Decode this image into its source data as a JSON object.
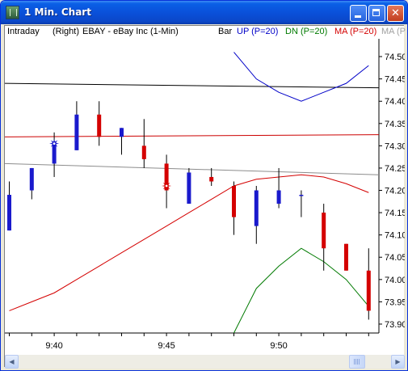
{
  "window": {
    "title": "1 Min. Chart",
    "icon": "chart-app-icon",
    "controls": {
      "minimize": "minimize-icon",
      "maximize": "maximize-icon",
      "close": "✕"
    }
  },
  "header": {
    "mode": "Intraday",
    "axis_side": "(Right)",
    "symbol": "EBAY - eBay Inc  (1-Min)",
    "bar_label": "Bar",
    "up_label": "UP (P=20)",
    "dn_label": "DN (P=20)",
    "ma_label": "MA (P=20)",
    "ma2_label": "MA (P"
  },
  "colors": {
    "up_candle": "#1a1acd",
    "down_candle": "#d40000",
    "up_band": "#0000c8",
    "dn_band": "#007a00",
    "ma": "#d40000",
    "level_black": "#000000",
    "level_red": "#cc0000",
    "level_gray": "#8c8c8c"
  },
  "chart_data": {
    "type": "candlestick",
    "y_ticks": [
      73.9,
      73.95,
      74.0,
      74.05,
      74.1,
      74.15,
      74.2,
      74.25,
      74.3,
      74.35,
      74.4,
      74.45,
      74.5
    ],
    "ylim": [
      73.88,
      74.54
    ],
    "x_ticks": [
      "9:40",
      "9:45",
      "9:50"
    ],
    "time_axis_minutes": [
      "9:38",
      "9:39",
      "9:40",
      "9:41",
      "9:42",
      "9:43",
      "9:44",
      "9:45",
      "9:46",
      "9:47",
      "9:48",
      "9:49",
      "9:50",
      "9:51",
      "9:52",
      "9:53",
      "9:54"
    ],
    "candles": [
      {
        "t": "9:38",
        "open": 74.11,
        "high": 74.22,
        "low": 74.11,
        "close": 74.19
      },
      {
        "t": "9:39",
        "open": 74.2,
        "high": 74.25,
        "low": 74.18,
        "close": 74.25
      },
      {
        "t": "9:40",
        "open": 74.26,
        "high": 74.33,
        "low": 74.23,
        "close": 74.31
      },
      {
        "t": "9:41",
        "open": 74.29,
        "high": 74.4,
        "low": 74.29,
        "close": 74.37
      },
      {
        "t": "9:42",
        "open": 74.37,
        "high": 74.4,
        "low": 74.3,
        "close": 74.32
      },
      {
        "t": "9:43",
        "open": 74.32,
        "high": 74.34,
        "low": 74.28,
        "close": 74.34
      },
      {
        "t": "9:44",
        "open": 74.3,
        "high": 74.36,
        "low": 74.25,
        "close": 74.27
      },
      {
        "t": "9:45",
        "open": 74.26,
        "high": 74.28,
        "low": 74.16,
        "close": 74.2
      },
      {
        "t": "9:46",
        "open": 74.17,
        "high": 74.25,
        "low": 74.17,
        "close": 74.24
      },
      {
        "t": "9:47",
        "open": 74.23,
        "high": 74.25,
        "low": 74.21,
        "close": 74.22
      },
      {
        "t": "9:48",
        "open": 74.21,
        "high": 74.22,
        "low": 74.1,
        "close": 74.14
      },
      {
        "t": "9:49",
        "open": 74.12,
        "high": 74.21,
        "low": 74.08,
        "close": 74.2
      },
      {
        "t": "9:50",
        "open": 74.17,
        "high": 74.25,
        "low": 74.16,
        "close": 74.2
      },
      {
        "t": "9:51",
        "open": 74.19,
        "high": 74.2,
        "low": 74.14,
        "close": 74.19
      },
      {
        "t": "9:52",
        "open": 74.15,
        "high": 74.17,
        "low": 74.02,
        "close": 74.07
      },
      {
        "t": "9:53",
        "open": 74.08,
        "high": 74.08,
        "low": 74.02,
        "close": 74.02
      },
      {
        "t": "9:54",
        "open": 74.02,
        "high": 74.07,
        "low": 73.91,
        "close": 73.93
      }
    ],
    "markers": [
      {
        "t": "9:40",
        "price": 74.305,
        "color": "#1a1acd",
        "name": "blue-star-marker"
      },
      {
        "t": "9:45",
        "price": 74.21,
        "color": "#d40000",
        "name": "red-star-marker"
      }
    ],
    "series": [
      {
        "name": "UP (P=20)",
        "key": "up",
        "color": "#0000c8",
        "x": [
          "9:48",
          "9:49",
          "9:50",
          "9:51",
          "9:52",
          "9:53",
          "9:54"
        ],
        "values": [
          74.51,
          74.45,
          74.42,
          74.4,
          74.42,
          74.44,
          74.48
        ]
      },
      {
        "name": "DN (P=20)",
        "key": "dn",
        "color": "#007a00",
        "x": [
          "9:48",
          "9:49",
          "9:50",
          "9:51",
          "9:52",
          "9:53",
          "9:54"
        ],
        "values": [
          73.88,
          73.98,
          74.03,
          74.07,
          74.04,
          74.0,
          73.94
        ]
      },
      {
        "name": "MA (P=20)",
        "key": "ma",
        "color": "#d40000",
        "x": [
          "9:38",
          "9:39",
          "9:40",
          "9:41",
          "9:42",
          "9:43",
          "9:44",
          "9:45",
          "9:46",
          "9:47",
          "9:48",
          "9:49",
          "9:50",
          "9:51",
          "9:52",
          "9:53",
          "9:54"
        ],
        "values": [
          73.93,
          73.95,
          73.97,
          74.0,
          74.03,
          74.06,
          74.09,
          74.12,
          74.15,
          74.18,
          74.21,
          74.225,
          74.23,
          74.235,
          74.23,
          74.215,
          74.195
        ]
      }
    ],
    "levels": [
      {
        "name": "black-level-line",
        "color": "#000000",
        "from": 74.44,
        "to": 74.43
      },
      {
        "name": "red-level-line",
        "color": "#cc0000",
        "from": 74.32,
        "to": 74.325
      },
      {
        "name": "gray-level-line",
        "color": "#8c8c8c",
        "from": 74.26,
        "to": 74.235
      }
    ]
  }
}
